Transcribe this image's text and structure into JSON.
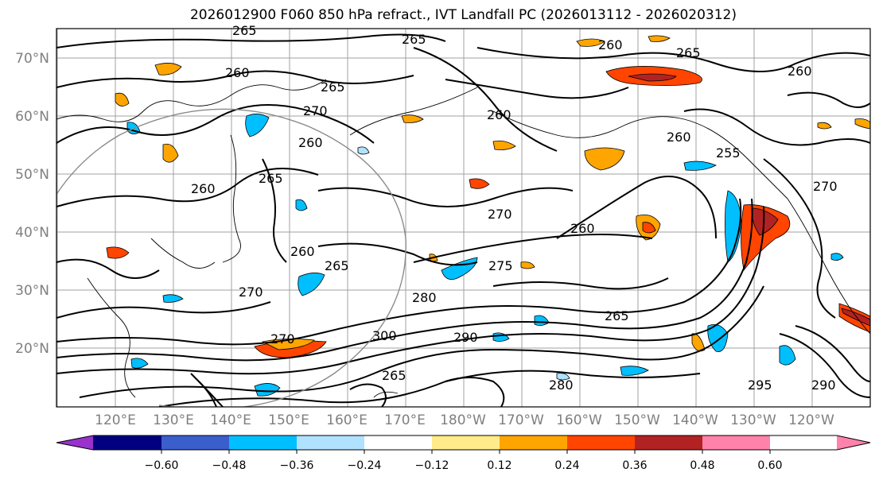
{
  "title": "2026012900 F060 850 hPa refract., IVT Landfall PC (2026013112 - 2026020312)",
  "map": {
    "lat_labels": [
      "70°N",
      "60°N",
      "50°N",
      "40°N",
      "30°N",
      "20°N"
    ],
    "lon_labels": [
      "120°E",
      "130°E",
      "140°E",
      "150°E",
      "160°E",
      "170°E",
      "180°W",
      "170°W",
      "160°W",
      "150°W",
      "140°W",
      "130°W",
      "120°W"
    ],
    "contour_labels": [
      "265",
      "265",
      "260",
      "265",
      "270",
      "260",
      "260",
      "265",
      "260",
      "260",
      "265",
      "270",
      "275",
      "270",
      "280",
      "260",
      "265",
      "290",
      "300",
      "270",
      "260",
      "265",
      "260",
      "255",
      "270",
      "265",
      "260",
      "280",
      "290",
      "295"
    ]
  },
  "colorbar": {
    "tick_labels": [
      "−0.60",
      "−0.48",
      "−0.36",
      "−0.24",
      "−0.12",
      "0.12",
      "0.24",
      "0.36",
      "0.48",
      "0.60"
    ],
    "colors": [
      "#9932cc",
      "#000080",
      "#3a5fcd",
      "#00bfff",
      "#b0e2ff",
      "#ffffff",
      "#ffeb8a",
      "#ffa500",
      "#ff4500",
      "#b22222",
      "#ff82ab"
    ]
  }
}
